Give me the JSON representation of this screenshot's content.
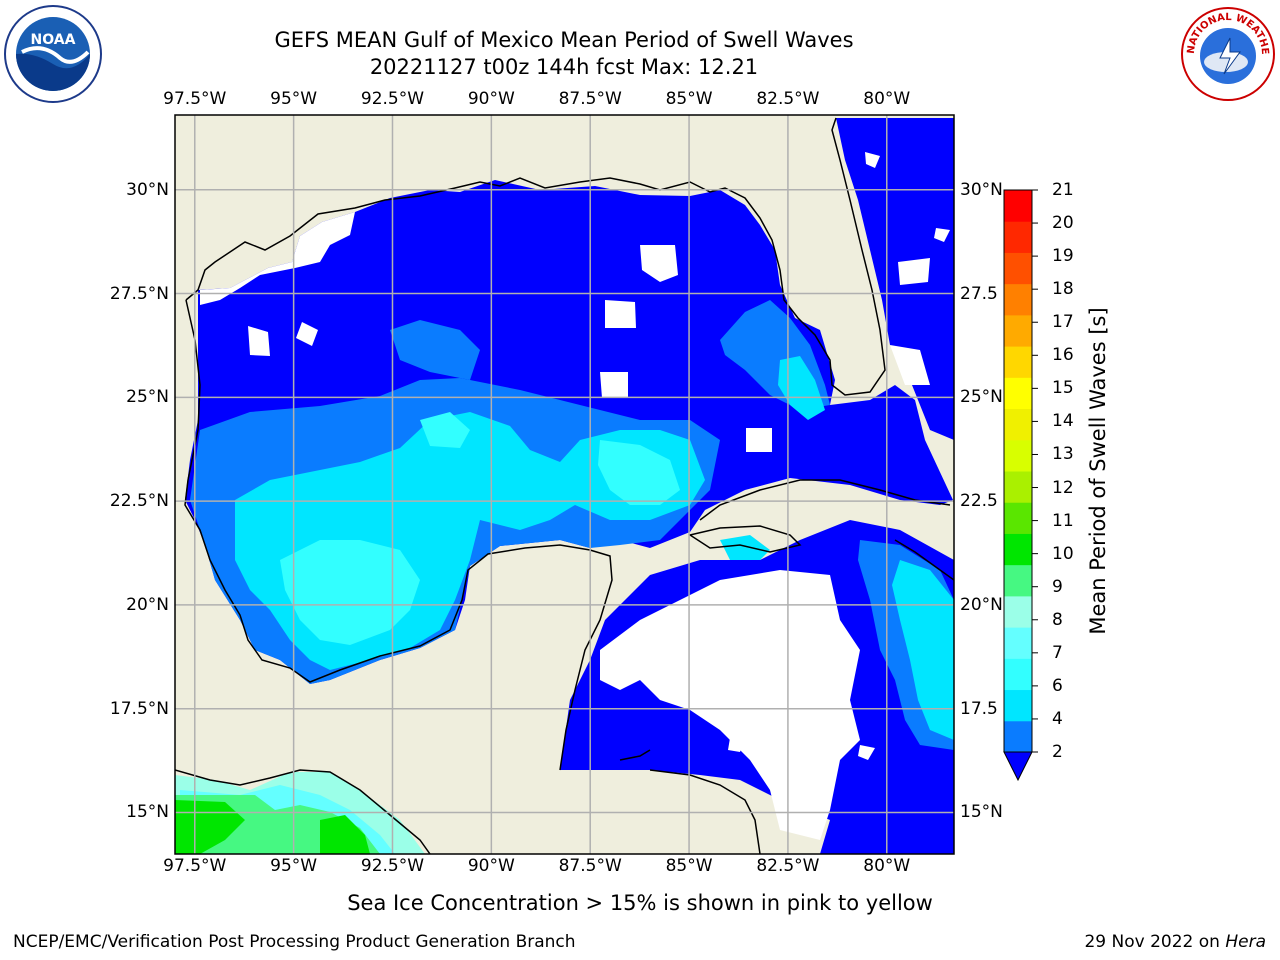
{
  "title_line1": "GEFS MEAN Gulf of Mexico Mean Period of Swell Waves",
  "title_line2": "20221127 t00z 144h fcst   Max: 12.21",
  "logos": [
    {
      "name": "noaa-logo",
      "text": "NOAA"
    },
    {
      "name": "nws-logo",
      "text": "NATIONAL WEATHER SERVICE"
    }
  ],
  "map": {
    "lon_ticks": [
      "97.5°W",
      "95°W",
      "92.5°W",
      "90°W",
      "87.5°W",
      "85°W",
      "82.5°W",
      "80°W"
    ],
    "lat_ticks_left": [
      "30°N",
      "27.5°N",
      "25°N",
      "22.5°N",
      "20°N",
      "17.5°N",
      "15°N"
    ],
    "lat_ticks_right": [
      "30°N",
      "27.5",
      "25°N",
      "22.5",
      "20°N",
      "17.5",
      "15°N"
    ],
    "lon_values": [
      -97.5,
      -95,
      -92.5,
      -90,
      -87.5,
      -85,
      -82.5,
      -80
    ],
    "lat_values": [
      30,
      27.5,
      25,
      22.5,
      20,
      17.5,
      15
    ],
    "extent": {
      "lon_min": -98,
      "lon_max": -78.3,
      "lat_min": 14.0,
      "lat_max": 31.8
    },
    "land_color": "#efeedd",
    "grid_color": "#b0b0b0"
  },
  "colorbar": {
    "title": "Mean Period of Swell Waves [s]",
    "tick_labels": [
      "2",
      "4",
      "6",
      "7",
      "8",
      "9",
      "10",
      "11",
      "12",
      "13",
      "14",
      "15",
      "16",
      "17",
      "18",
      "19",
      "20",
      "21"
    ],
    "colors": [
      "#0000ff",
      "#0a7cff",
      "#00e6ff",
      "#32ffff",
      "#64ffff",
      "#9bffe8",
      "#46f882",
      "#00e600",
      "#5ae600",
      "#aaf000",
      "#d8ff00",
      "#f0f000",
      "#ffff00",
      "#ffd700",
      "#ffaa00",
      "#ff8000",
      "#ff5000",
      "#ff2800",
      "#ff0000"
    ]
  },
  "ice_note": "Sea Ice Concentration > 15% is shown in pink to yellow",
  "footer_left": "NCEP/EMC/Verification Post Processing Product Generation Branch",
  "footer_right_prefix": "29 Nov 2022 on ",
  "footer_right_host": "Hera"
}
